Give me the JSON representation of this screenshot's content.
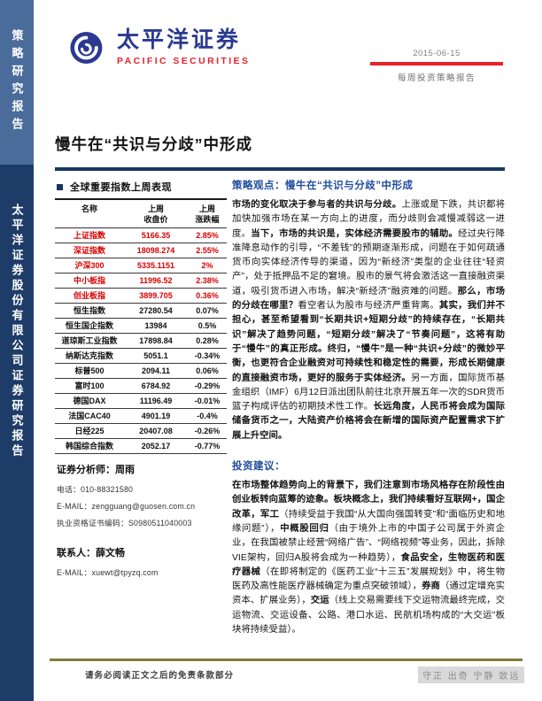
{
  "colors": {
    "brand_red": "#e62129",
    "brand_blue": "#2b3a90",
    "sidebar_top": "#4a6c9b",
    "sidebar_bottom": "#1e3c68",
    "rule_navy": "#17375e",
    "heading_blue": "#1f4c9e",
    "positive_red": "#d80000",
    "footer_gold": "#85793a"
  },
  "sidebar": {
    "top_label": "策略研究报告",
    "bottom_label": "太平洋证券股份有限公司证券研究报告"
  },
  "header": {
    "brand_cn": "太平洋证券",
    "brand_en": "PACIFIC SECURITIES",
    "date": "2015-06-15",
    "report_type": "每周投资策略报告"
  },
  "title": "慢牛在“共识与分歧”中形成",
  "indices": {
    "section_title": "全球重要指数上周表现",
    "col_name": "名称",
    "col_close_l1": "上周",
    "col_close_l2": "收盘价",
    "col_chg_l1": "上周",
    "col_chg_l2": "涨跌幅",
    "rows": [
      {
        "name": "上证指数",
        "close": "5166.35",
        "change": "2.85%",
        "red": true
      },
      {
        "name": "深证指数",
        "close": "18098.274",
        "change": "2.55%",
        "red": true
      },
      {
        "name": "沪深300",
        "close": "5335.1151",
        "change": "2%",
        "red": true
      },
      {
        "name": "中小板指",
        "close": "11996.52",
        "change": "2.38%",
        "red": true
      },
      {
        "name": "创业板指",
        "close": "3899.705",
        "change": "0.36%",
        "red": true
      },
      {
        "name": "恒生指数",
        "close": "27280.54",
        "change": "0.07%",
        "red": false
      },
      {
        "name": "恒生国企指数",
        "close": "13984",
        "change": "0.5%",
        "red": false
      },
      {
        "name": "道琼斯工业指数",
        "close": "17898.84",
        "change": "0.28%",
        "red": false
      },
      {
        "name": "纳斯达克指数",
        "close": "5051.1",
        "change": "-0.34%",
        "red": false
      },
      {
        "name": "标普500",
        "close": "2094.11",
        "change": "0.06%",
        "red": false
      },
      {
        "name": "富时100",
        "close": "6784.92",
        "change": "-0.29%",
        "red": false
      },
      {
        "name": "德国DAX",
        "close": "11196.49",
        "change": "-0.01%",
        "red": false
      },
      {
        "name": "法国CAC40",
        "close": "4901.19",
        "change": "-0.4%",
        "red": false
      },
      {
        "name": "日经225",
        "close": "20407.08",
        "change": "-0.26%",
        "red": false
      },
      {
        "name": "韩国综合指数",
        "close": "2052.17",
        "change": "-0.77%",
        "red": false
      }
    ]
  },
  "analyst": {
    "analyst_label": "证券分析师：周雨",
    "phone": "电话：010-88321580",
    "email": "E-MAIL：zengguang@guosen.com.cn",
    "license": "执业资格证书编码：S0980511040003",
    "contact_label": "联系人：薛文畅",
    "contact_email": "E-MAIL：xuewt@tpyzq.com"
  },
  "strategy": {
    "heading": "策略观点：慢牛在“共识与分歧”中形成",
    "paragraph_runs": [
      {
        "t": "市场的变化取决于参与者的共识与分歧。",
        "b": true
      },
      {
        "t": "上涨或是下跌，共识都将加快加强市场在某一方向上的进度，而分歧则会减慢减弱这一进度。",
        "b": false
      },
      {
        "t": "当下，市场的共识是，实体经济需要股市的辅助。",
        "b": true
      },
      {
        "t": "经过央行降准降息动作的引导，“不差钱”的预期逐渐形成，问题在于如何疏通货币向实体经济传导的渠道，因为“新经济”类型的企业往往“轻资产”，处于抵押品不足的窘境。股市的景气将会激活这一直接融资渠道，吸引货币进入市场，解决“新经济”融资难的问题。",
        "b": false
      },
      {
        "t": "那么，市场的分歧在哪里？",
        "b": true
      },
      {
        "t": "看空者认为股市与经济严重背离。",
        "b": false
      },
      {
        "t": "其实，我们并不担心，甚至希望看到“长期共识+短期分歧”的持续存在，“长期共识”解决了趋势问题，“短期分歧”解决了“节奏问题”，这将有助于“慢牛”的真正形成。终归，“慢牛”是一种“共识+分歧”的微妙平衡，也更符合企业融资对可持续性和稳定性的需要，形成长期健康的直接融资市场，更好的服务于实体经济。",
        "b": true
      },
      {
        "t": "另一方面，国际货币基金组织（IMF）6月12日派出团队前往北京开展五年一次的SDR货币篮子构成评估的初期技术性工作。",
        "b": false
      },
      {
        "t": "长远角度，人民币将会成为国际储备货币之一，大陆资产价格将会在新增的国际资产配置需求下扩展上升空间。",
        "b": true
      }
    ],
    "advice_heading": "投资建议：",
    "advice_runs": [
      {
        "t": "在市场整体趋势向上的背景下，我们注意到市场风格存在阶段性由创业板转向蓝筹的迹象。板块概念上，我们持续看好互联网+，国企改革，军工",
        "b": true
      },
      {
        "t": "（持续受益于我国“从大国向强国转变”和“面临历史和地缘问题”），",
        "b": false
      },
      {
        "t": "中概股回归",
        "b": true
      },
      {
        "t": "（由于境外上市的中国子公司属于外资企业，在我国被禁止经营“网络广告”、“网络视频”等业务，因此，拆除VIE架构，回归A股将会成为一种趋势），",
        "b": false
      },
      {
        "t": "食品安全，生物医药和医疗器械",
        "b": true
      },
      {
        "t": "（在即将制定的《医药工业“十三五”发展规划》中，将生物医药及高性能医疗器械确定为重点突破领域），",
        "b": false
      },
      {
        "t": "券商",
        "b": true
      },
      {
        "t": "（通过定增充实资本、扩展业务），",
        "b": false
      },
      {
        "t": "交运",
        "b": true
      },
      {
        "t": "（线上交易需要线下交运物流最终完成，交运物流、交运设备、公路、港口水运、民航机场构成的“大交运”板块将持续受益）。",
        "b": false
      }
    ]
  },
  "footer": {
    "disclaimer": "请务必阅读正文之后的免责条款部分",
    "motto": "守正 出奇 宁静 致远"
  }
}
